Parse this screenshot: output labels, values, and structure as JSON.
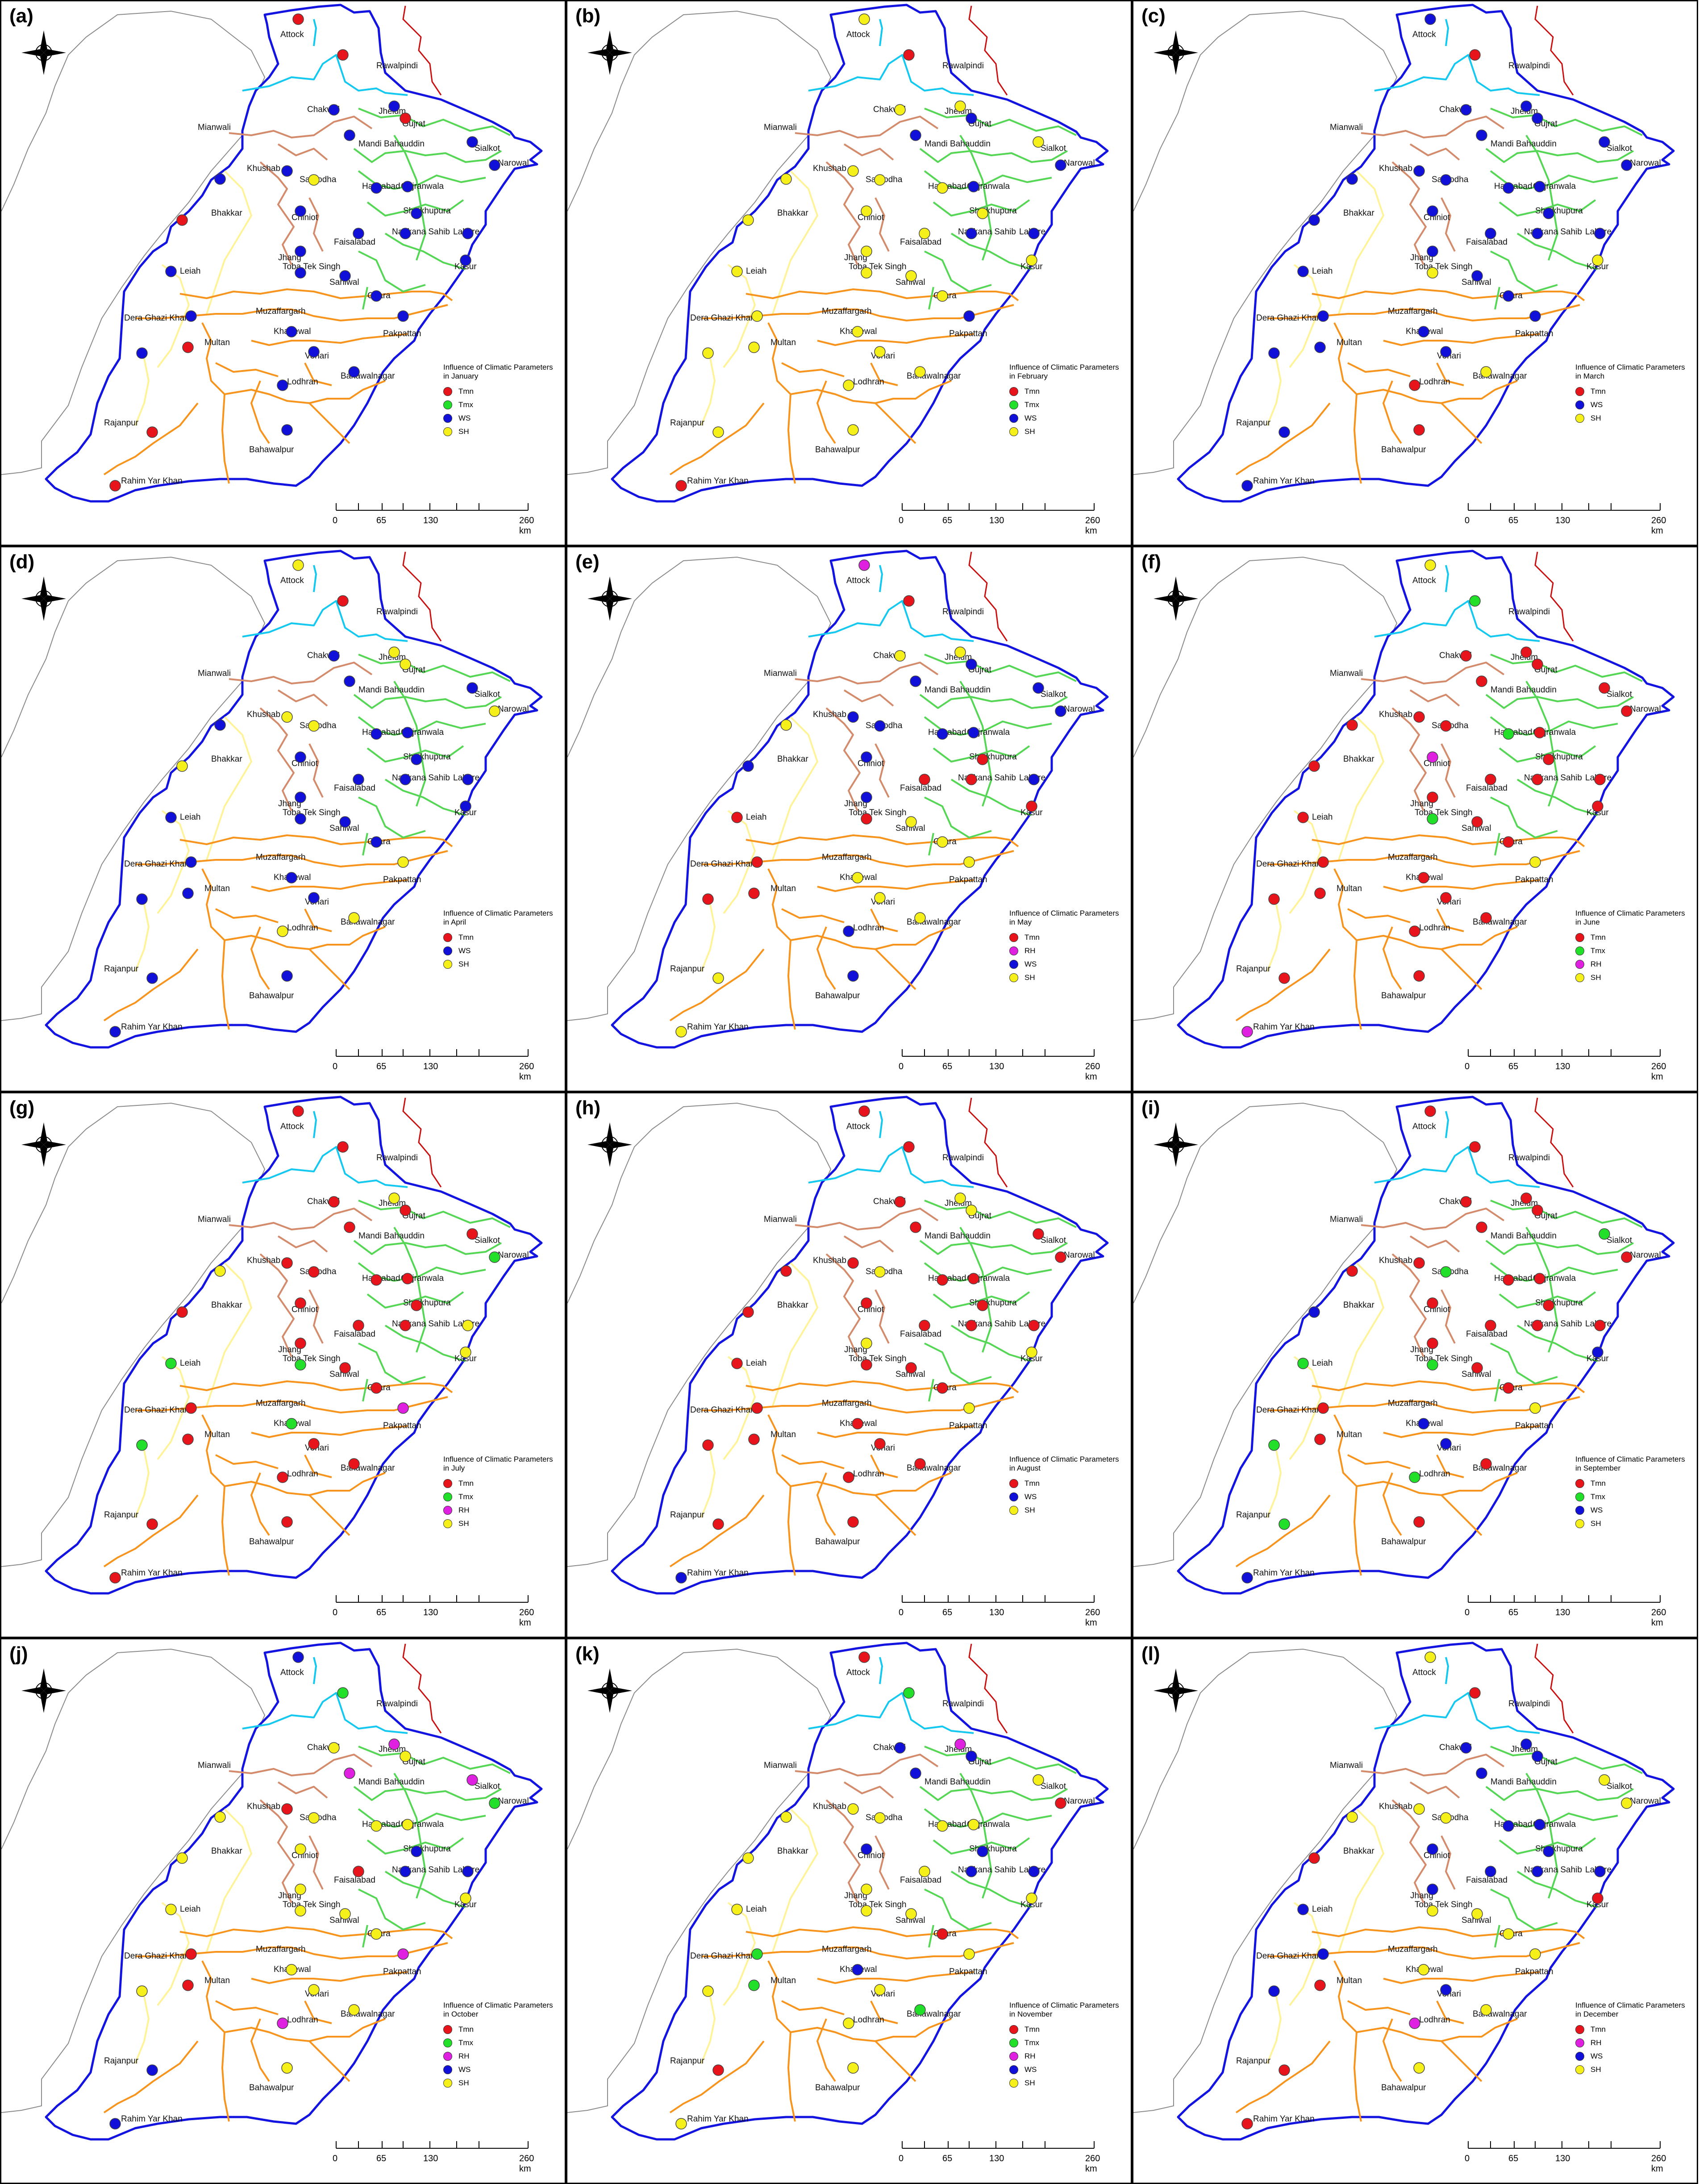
{
  "colors": {
    "Tmn": "#e8141b",
    "Tmx": "#22e02a",
    "RH": "#e020e0",
    "WS": "#1010d8",
    "SH": "#f6f01a"
  },
  "labels": {
    "cities": [
      "Attock",
      "Rawalpindi",
      "Chakwal",
      "Jhelum",
      "Gujrat",
      "Mianwali",
      "Mandi Bahauddin",
      "Sialkot",
      "Narowal",
      "Khushab",
      "Sargodha",
      "Hafizabad",
      "Gujranwala",
      "Bhakkar",
      "Chiniot",
      "Sheikhupura",
      "Nankana Sahib",
      "Lahore",
      "Faisalabad",
      "Jhang",
      "Leiah",
      "Toba Tek Singh",
      "Kasur",
      "Sahiwal",
      "Okara",
      "Muzaffargarh",
      "Dera Ghazi Khan",
      "Khanewal",
      "Multan",
      "Pakpattan",
      "Vehari",
      "Lodhran",
      "Bahawalnagar",
      "Rajanpur",
      "Bahawalpur",
      "Rahim Yar Khan"
    ],
    "scale": [
      "0",
      "65",
      "130",
      "260 km"
    ]
  },
  "panels": [
    {
      "label": "(a)",
      "legend_title": "Influence of Climatic Parameters in January",
      "legend": [
        "Tmn",
        "Tmx",
        "WS",
        "SH"
      ],
      "stations": [
        "Tmn",
        "Tmn",
        "WS",
        "WS",
        "Tmn",
        "WS",
        "WS",
        "WS",
        "WS",
        "WS",
        "SH",
        "WS",
        "WS",
        "Tmn",
        "WS",
        "WS",
        "WS",
        "WS",
        "WS",
        "WS",
        "WS",
        "WS",
        "WS",
        "WS",
        "WS",
        "WS",
        "WS",
        "WS",
        "Tmn",
        "WS",
        "WS",
        "WS",
        "WS",
        "Tmn",
        "WS",
        "Tmn"
      ]
    },
    {
      "label": "(b)",
      "legend_title": "Influence of Climatic Parameters in February",
      "legend": [
        "Tmn",
        "Tmx",
        "WS",
        "SH"
      ],
      "stations": [
        "SH",
        "Tmn",
        "SH",
        "SH",
        "WS",
        "SH",
        "WS",
        "SH",
        "WS",
        "SH",
        "SH",
        "SH",
        "WS",
        "SH",
        "SH",
        "SH",
        "WS",
        "WS",
        "SH",
        "SH",
        "SH",
        "SH",
        "SH",
        "SH",
        "SH",
        "SH",
        "SH",
        "SH",
        "SH",
        "WS",
        "SH",
        "SH",
        "SH",
        "SH",
        "SH",
        "Tmn"
      ]
    },
    {
      "label": "(c)",
      "legend_title": "Influence of Climatic Parameters in March",
      "legend": [
        "Tmn",
        "WS",
        "SH"
      ],
      "stations": [
        "WS",
        "Tmn",
        "WS",
        "WS",
        "WS",
        "WS",
        "WS",
        "WS",
        "WS",
        "WS",
        "WS",
        "WS",
        "WS",
        "WS",
        "WS",
        "WS",
        "WS",
        "WS",
        "WS",
        "WS",
        "WS",
        "SH",
        "SH",
        "WS",
        "WS",
        "WS",
        "WS",
        "WS",
        "WS",
        "WS",
        "WS",
        "Tmn",
        "SH",
        "WS",
        "Tmn",
        "WS"
      ]
    },
    {
      "label": "(d)",
      "legend_title": "Influence of Climatic Parameters in April",
      "legend": [
        "Tmn",
        "WS",
        "SH"
      ],
      "stations": [
        "SH",
        "Tmn",
        "WS",
        "SH",
        "SH",
        "WS",
        "WS",
        "WS",
        "SH",
        "SH",
        "SH",
        "WS",
        "WS",
        "SH",
        "WS",
        "WS",
        "WS",
        "WS",
        "WS",
        "WS",
        "WS",
        "WS",
        "WS",
        "WS",
        "WS",
        "WS",
        "WS",
        "WS",
        "WS",
        "SH",
        "WS",
        "SH",
        "SH",
        "WS",
        "WS",
        "WS"
      ]
    },
    {
      "label": "(e)",
      "legend_title": "Influence of Climatic Parameters in May",
      "legend": [
        "Tmn",
        "RH",
        "WS",
        "SH"
      ],
      "stations": [
        "RH",
        "Tmn",
        "SH",
        "SH",
        "WS",
        "SH",
        "WS",
        "WS",
        "WS",
        "WS",
        "WS",
        "WS",
        "WS",
        "WS",
        "WS",
        "Tmn",
        "Tmn",
        "WS",
        "Tmn",
        "WS",
        "Tmn",
        "Tmn",
        "Tmn",
        "SH",
        "SH",
        "Tmn",
        "Tmn",
        "SH",
        "Tmn",
        "SH",
        "SH",
        "WS",
        "SH",
        "SH",
        "WS",
        "SH"
      ]
    },
    {
      "label": "(f)",
      "legend_title": "Influence of Climatic Parameters in June",
      "legend": [
        "Tmn",
        "Tmx",
        "RH",
        "SH"
      ],
      "stations": [
        "SH",
        "Tmx",
        "Tmn",
        "Tmn",
        "Tmn",
        "Tmn",
        "Tmn",
        "Tmn",
        "Tmn",
        "Tmn",
        "Tmn",
        "Tmx",
        "Tmn",
        "Tmn",
        "RH",
        "Tmn",
        "Tmn",
        "Tmn",
        "Tmn",
        "Tmn",
        "Tmn",
        "Tmx",
        "Tmn",
        "Tmn",
        "Tmn",
        "Tmn",
        "Tmn",
        "Tmn",
        "Tmn",
        "SH",
        "Tmn",
        "Tmn",
        "Tmn",
        "Tmn",
        "Tmn",
        "RH"
      ]
    },
    {
      "label": "(g)",
      "legend_title": "Influence of Climatic Parameters in July",
      "legend": [
        "Tmn",
        "Tmx",
        "RH",
        "SH"
      ],
      "stations": [
        "Tmn",
        "Tmn",
        "Tmn",
        "SH",
        "Tmn",
        "SH",
        "Tmn",
        "Tmn",
        "Tmx",
        "Tmn",
        "Tmn",
        "Tmn",
        "Tmn",
        "Tmn",
        "Tmn",
        "Tmn",
        "Tmn",
        "SH",
        "Tmn",
        "Tmn",
        "Tmx",
        "Tmx",
        "SH",
        "Tmn",
        "Tmn",
        "Tmn",
        "Tmx",
        "Tmx",
        "Tmn",
        "RH",
        "Tmn",
        "Tmn",
        "Tmn",
        "Tmn",
        "Tmn",
        "Tmn"
      ]
    },
    {
      "label": "(h)",
      "legend_title": "Influence of Climatic Parameters in August",
      "legend": [
        "Tmn",
        "WS",
        "SH"
      ],
      "stations": [
        "Tmn",
        "Tmn",
        "Tmn",
        "SH",
        "SH",
        "Tmn",
        "Tmn",
        "Tmn",
        "Tmn",
        "Tmn",
        "SH",
        "Tmn",
        "Tmn",
        "Tmn",
        "Tmn",
        "Tmn",
        "Tmn",
        "Tmn",
        "Tmn",
        "SH",
        "Tmn",
        "Tmn",
        "SH",
        "Tmn",
        "Tmn",
        "Tmn",
        "Tmn",
        "Tmn",
        "Tmn",
        "SH",
        "Tmn",
        "Tmn",
        "Tmn",
        "Tmn",
        "Tmn",
        "WS"
      ]
    },
    {
      "label": "(i)",
      "legend_title": "Influence of Climatic Parameters in September",
      "legend": [
        "Tmn",
        "Tmx",
        "WS",
        "SH"
      ],
      "stations": [
        "Tmn",
        "Tmn",
        "Tmn",
        "Tmn",
        "Tmn",
        "Tmn",
        "Tmn",
        "Tmx",
        "Tmn",
        "Tmn",
        "Tmx",
        "Tmn",
        "Tmn",
        "WS",
        "Tmn",
        "Tmn",
        "Tmn",
        "Tmn",
        "Tmn",
        "Tmn",
        "Tmx",
        "Tmx",
        "WS",
        "Tmn",
        "Tmn",
        "Tmn",
        "Tmx",
        "WS",
        "Tmn",
        "SH",
        "WS",
        "Tmx",
        "Tmn",
        "Tmx",
        "Tmn",
        "WS"
      ]
    },
    {
      "label": "(j)",
      "legend_title": "Influence of Climatic Parameters in October",
      "legend": [
        "Tmn",
        "Tmx",
        "RH",
        "WS",
        "SH"
      ],
      "stations": [
        "WS",
        "Tmx",
        "SH",
        "RH",
        "SH",
        "SH",
        "RH",
        "RH",
        "Tmx",
        "Tmn",
        "SH",
        "SH",
        "SH",
        "SH",
        "SH",
        "WS",
        "WS",
        "WS",
        "Tmn",
        "SH",
        "SH",
        "SH",
        "SH",
        "SH",
        "SH",
        "Tmn",
        "SH",
        "SH",
        "Tmn",
        "RH",
        "SH",
        "RH",
        "SH",
        "WS",
        "SH",
        "WS"
      ]
    },
    {
      "label": "(k)",
      "legend_title": "Influence of Climatic Parameters in November",
      "legend": [
        "Tmn",
        "Tmx",
        "RH",
        "WS",
        "SH"
      ],
      "stations": [
        "Tmn",
        "Tmx",
        "WS",
        "RH",
        "WS",
        "SH",
        "WS",
        "SH",
        "Tmn",
        "SH",
        "SH",
        "SH",
        "SH",
        "SH",
        "WS",
        "WS",
        "WS",
        "WS",
        "SH",
        "SH",
        "SH",
        "SH",
        "SH",
        "SH",
        "Tmn",
        "Tmx",
        "SH",
        "WS",
        "Tmx",
        "SH",
        "SH",
        "SH",
        "Tmx",
        "Tmn",
        "SH",
        "SH"
      ]
    },
    {
      "label": "(l)",
      "legend_title": "Influence of Climatic Parameters in December",
      "legend": [
        "Tmn",
        "RH",
        "WS",
        "SH"
      ],
      "stations": [
        "SH",
        "Tmn",
        "WS",
        "WS",
        "WS",
        "SH",
        "WS",
        "SH",
        "SH",
        "SH",
        "SH",
        "WS",
        "WS",
        "Tmn",
        "WS",
        "WS",
        "WS",
        "WS",
        "WS",
        "WS",
        "WS",
        "SH",
        "Tmn",
        "SH",
        "SH",
        "WS",
        "WS",
        "SH",
        "Tmn",
        "SH",
        "WS",
        "RH",
        "SH",
        "Tmn",
        "SH",
        "Tmn"
      ]
    }
  ]
}
